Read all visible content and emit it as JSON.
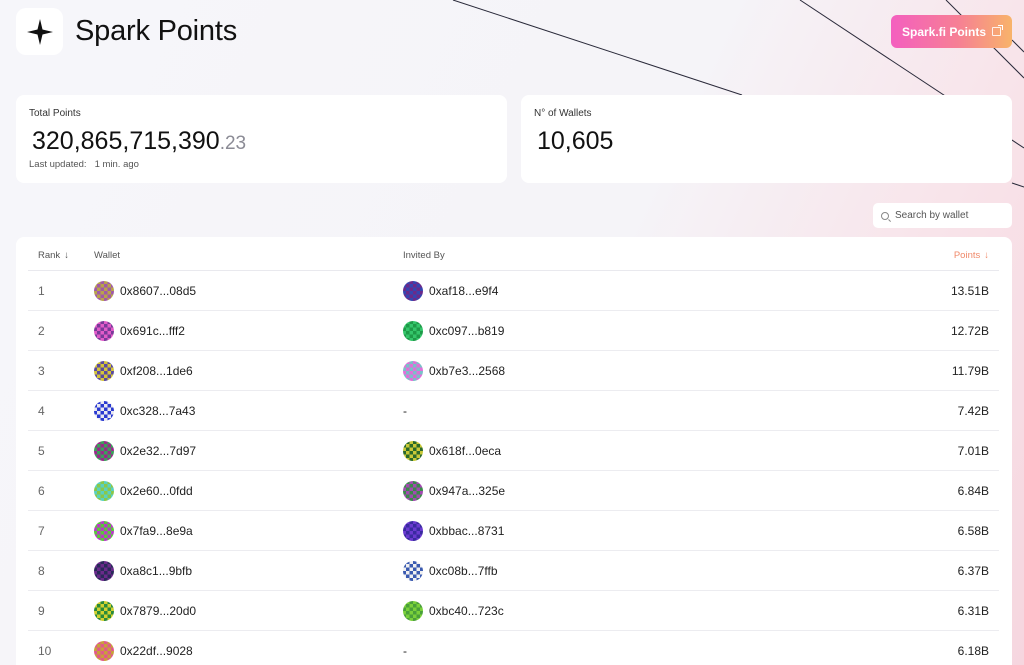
{
  "app": {
    "title": "Spark Points",
    "cta_label": "Spark.fi Points"
  },
  "stats": {
    "total_label": "Total Points",
    "total_int": "320,865,715,390",
    "total_dec": ".23",
    "updated_label": "Last updated:",
    "updated_value": "1 min. ago",
    "wallets_label": "N° of Wallets",
    "wallets_value": "10,605"
  },
  "search": {
    "placeholder": "Search by wallet"
  },
  "table": {
    "headers": {
      "rank": "Rank",
      "wallet": "Wallet",
      "invited": "Invited By",
      "points": "Points",
      "sort_arrow": "↓"
    },
    "rows": [
      {
        "rank": "1",
        "wallet": "0x8607...08d5",
        "invited": "0xaf18...e9f4",
        "points": "13.51B",
        "wc": [
          "#b9a44a",
          "#a05aa8"
        ],
        "ic": [
          "#3545b0",
          "#6a2a8a"
        ]
      },
      {
        "rank": "2",
        "wallet": "0x691c...fff2",
        "invited": "0xc097...b819",
        "points": "12.72B",
        "wc": [
          "#e25bc8",
          "#7a3a9a"
        ],
        "ic": [
          "#34c56a",
          "#1e9a48"
        ]
      },
      {
        "rank": "3",
        "wallet": "0xf208...1de6",
        "invited": "0xb7e3...2568",
        "points": "11.79B",
        "wc": [
          "#d4c43a",
          "#5a4aa0"
        ],
        "ic": [
          "#e070d8",
          "#7ac0c8"
        ]
      },
      {
        "rank": "4",
        "wallet": "0xc328...7a43",
        "invited": "-",
        "points": "7.42B",
        "wc": [
          "#2a3ad0",
          "#e8e8f0"
        ],
        "ic": null
      },
      {
        "rank": "5",
        "wallet": "0x2e32...7d97",
        "invited": "0x618f...0eca",
        "points": "7.01B",
        "wc": [
          "#9a2a8a",
          "#3aa05a"
        ],
        "ic": [
          "#2a6a2a",
          "#c8c838"
        ]
      },
      {
        "rank": "6",
        "wallet": "0x2e60...0fdd",
        "invited": "0x947a...325e",
        "points": "6.84B",
        "wc": [
          "#5ad0c0",
          "#8ac84a"
        ],
        "ic": [
          "#3a8a4a",
          "#a24ab0"
        ]
      },
      {
        "rank": "7",
        "wallet": "0x7fa9...8e9a",
        "invited": "0xbbac...8731",
        "points": "6.58B",
        "wc": [
          "#5ac83a",
          "#b83ac8"
        ],
        "ic": [
          "#6a3ad0",
          "#3a2aa0"
        ]
      },
      {
        "rank": "8",
        "wallet": "0xa8c1...9bfb",
        "invited": "0xc08b...7ffb",
        "points": "6.37B",
        "wc": [
          "#6a2a8a",
          "#2a2a5a"
        ],
        "ic": [
          "#3a5ab0",
          "#f0f0f0"
        ]
      },
      {
        "rank": "9",
        "wallet": "0x7879...20d0",
        "invited": "0xbc40...723c",
        "points": "6.31B",
        "wc": [
          "#d0d030",
          "#2a8a3a"
        ],
        "ic": [
          "#7ad03a",
          "#4aa03a"
        ]
      },
      {
        "rank": "10",
        "wallet": "0x22df...9028",
        "invited": "-",
        "points": "6.18B",
        "wc": [
          "#e05a8a",
          "#c8a03a"
        ],
        "ic": null
      }
    ]
  }
}
